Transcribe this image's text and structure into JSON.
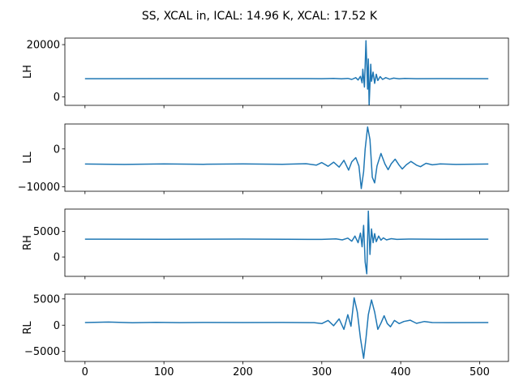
{
  "title": "SS, XCAL in, ICAL: 14.96 K, XCAL: 17.52 K",
  "colors": {
    "line": "#1f77b4",
    "axes": "#000000",
    "background": "#ffffff"
  },
  "chart_data": [
    {
      "type": "line",
      "ylabel": "LH",
      "baseline": 7000,
      "xlim": [
        -25.5,
        536.5
      ],
      "ylim": [
        -3200,
        22500
      ],
      "yticks": [
        0,
        20000
      ],
      "ytick_labels": [
        "0",
        "20000"
      ],
      "xticks": [
        0,
        100,
        200,
        300,
        400,
        500
      ],
      "xtick_labels": [],
      "points": [
        [
          0,
          7000
        ],
        [
          100,
          7010
        ],
        [
          200,
          7020
        ],
        [
          280,
          7030
        ],
        [
          300,
          7000
        ],
        [
          315,
          7080
        ],
        [
          325,
          6930
        ],
        [
          333,
          7120
        ],
        [
          338,
          6700
        ],
        [
          343,
          7400
        ],
        [
          346,
          6500
        ],
        [
          349,
          7900
        ],
        [
          351,
          5400
        ],
        [
          352,
          10600
        ],
        [
          354,
          3800
        ],
        [
          356,
          21500
        ],
        [
          358,
          3000
        ],
        [
          359,
          14500
        ],
        [
          360,
          -3000
        ],
        [
          362,
          12500
        ],
        [
          363,
          6000
        ],
        [
          365,
          9500
        ],
        [
          367,
          5200
        ],
        [
          369,
          8700
        ],
        [
          371,
          6300
        ],
        [
          374,
          7800
        ],
        [
          377,
          6700
        ],
        [
          381,
          7400
        ],
        [
          386,
          6800
        ],
        [
          391,
          7200
        ],
        [
          398,
          6950
        ],
        [
          405,
          7100
        ],
        [
          420,
          6980
        ],
        [
          450,
          7020
        ],
        [
          511,
          7000
        ]
      ]
    },
    {
      "type": "line",
      "ylabel": "LL",
      "baseline": -4000,
      "xlim": [
        -25.5,
        536.5
      ],
      "ylim": [
        -11200,
        6600
      ],
      "yticks": [
        -10000,
        0
      ],
      "ytick_labels": [
        "−10000",
        "0"
      ],
      "xticks": [
        0,
        100,
        200,
        300,
        400,
        500
      ],
      "xtick_labels": [],
      "points": [
        [
          0,
          -4000
        ],
        [
          50,
          -4100
        ],
        [
          100,
          -3950
        ],
        [
          150,
          -4050
        ],
        [
          200,
          -3950
        ],
        [
          250,
          -4050
        ],
        [
          280,
          -3900
        ],
        [
          293,
          -4300
        ],
        [
          300,
          -3600
        ],
        [
          308,
          -4600
        ],
        [
          315,
          -3500
        ],
        [
          322,
          -4800
        ],
        [
          328,
          -3000
        ],
        [
          334,
          -5600
        ],
        [
          338,
          -3400
        ],
        [
          343,
          -2300
        ],
        [
          347,
          -4500
        ],
        [
          350,
          -10500
        ],
        [
          353,
          -6000
        ],
        [
          355,
          0
        ],
        [
          358,
          5800
        ],
        [
          361,
          2500
        ],
        [
          364,
          -7500
        ],
        [
          367,
          -9000
        ],
        [
          370,
          -4500
        ],
        [
          375,
          -1200
        ],
        [
          380,
          -4000
        ],
        [
          384,
          -5500
        ],
        [
          388,
          -3900
        ],
        [
          393,
          -2700
        ],
        [
          398,
          -4300
        ],
        [
          402,
          -5300
        ],
        [
          407,
          -4200
        ],
        [
          413,
          -3300
        ],
        [
          420,
          -4300
        ],
        [
          425,
          -4700
        ],
        [
          432,
          -3800
        ],
        [
          440,
          -4200
        ],
        [
          450,
          -3950
        ],
        [
          470,
          -4100
        ],
        [
          511,
          -4000
        ]
      ]
    },
    {
      "type": "line",
      "ylabel": "RH",
      "baseline": 3500,
      "xlim": [
        -25.5,
        536.5
      ],
      "ylim": [
        -3800,
        9400
      ],
      "yticks": [
        0,
        5000
      ],
      "ytick_labels": [
        "0",
        "5000"
      ],
      "xticks": [
        0,
        100,
        200,
        300,
        400,
        500
      ],
      "xtick_labels": [],
      "points": [
        [
          0,
          3500
        ],
        [
          100,
          3480
        ],
        [
          200,
          3510
        ],
        [
          300,
          3450
        ],
        [
          318,
          3550
        ],
        [
          326,
          3350
        ],
        [
          333,
          3700
        ],
        [
          338,
          3100
        ],
        [
          342,
          4100
        ],
        [
          346,
          2800
        ],
        [
          349,
          4700
        ],
        [
          351,
          2000
        ],
        [
          353,
          6200
        ],
        [
          355,
          -1000
        ],
        [
          357,
          -3300
        ],
        [
          359,
          9000
        ],
        [
          361,
          500
        ],
        [
          363,
          5500
        ],
        [
          365,
          2800
        ],
        [
          367,
          4600
        ],
        [
          369,
          3000
        ],
        [
          372,
          4100
        ],
        [
          375,
          3300
        ],
        [
          378,
          3750
        ],
        [
          382,
          3350
        ],
        [
          388,
          3600
        ],
        [
          395,
          3450
        ],
        [
          410,
          3520
        ],
        [
          450,
          3480
        ],
        [
          511,
          3500
        ]
      ]
    },
    {
      "type": "line",
      "ylabel": "RL",
      "baseline": 500,
      "xlim": [
        -25.5,
        536.5
      ],
      "ylim": [
        -6900,
        5900
      ],
      "yticks": [
        -5000,
        0,
        5000
      ],
      "ytick_labels": [
        "−5000",
        "0",
        "5000"
      ],
      "xticks": [
        0,
        100,
        200,
        300,
        400,
        500
      ],
      "xtick_labels": [
        "0",
        "100",
        "200",
        "300",
        "400",
        "500"
      ],
      "points": [
        [
          0,
          500
        ],
        [
          30,
          600
        ],
        [
          60,
          450
        ],
        [
          90,
          550
        ],
        [
          120,
          480
        ],
        [
          150,
          520
        ],
        [
          200,
          500
        ],
        [
          250,
          520
        ],
        [
          290,
          480
        ],
        [
          300,
          300
        ],
        [
          308,
          900
        ],
        [
          315,
          -100
        ],
        [
          322,
          1200
        ],
        [
          328,
          -800
        ],
        [
          333,
          2000
        ],
        [
          337,
          -200
        ],
        [
          341,
          5200
        ],
        [
          345,
          2500
        ],
        [
          349,
          -2500
        ],
        [
          353,
          -6300
        ],
        [
          356,
          -2500
        ],
        [
          359,
          2000
        ],
        [
          363,
          4800
        ],
        [
          367,
          2500
        ],
        [
          371,
          -800
        ],
        [
          375,
          400
        ],
        [
          379,
          1800
        ],
        [
          383,
          300
        ],
        [
          387,
          -300
        ],
        [
          392,
          900
        ],
        [
          398,
          300
        ],
        [
          404,
          700
        ],
        [
          412,
          950
        ],
        [
          420,
          350
        ],
        [
          430,
          700
        ],
        [
          440,
          500
        ],
        [
          460,
          480
        ],
        [
          511,
          500
        ]
      ]
    }
  ]
}
